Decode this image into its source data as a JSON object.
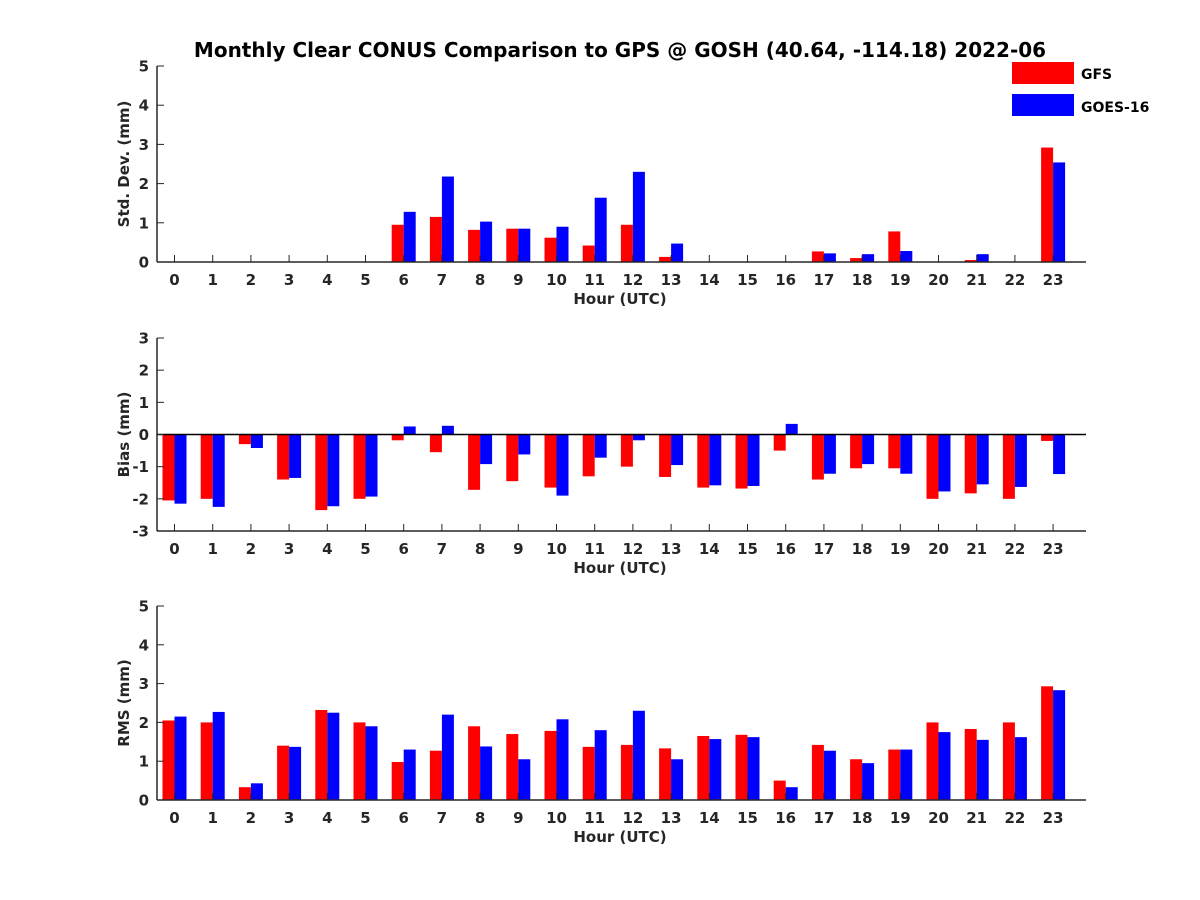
{
  "figure_title": "Monthly Clear CONUS Comparison to GPS @ GOSH (40.64, -114.18) 2022-06",
  "legend": {
    "location": "top-right",
    "entries": [
      {
        "label": "GFS",
        "color": "#ff0000"
      },
      {
        "label": "GOES-16",
        "color": "#0000ff"
      }
    ]
  },
  "chart_data": [
    {
      "type": "bar",
      "xlabel": "Hour (UTC)",
      "ylabel": "Std. Dev. (mm)",
      "ylim": [
        0,
        5
      ],
      "yticks": [
        0,
        1,
        2,
        3,
        4,
        5
      ],
      "categories": [
        "0",
        "1",
        "2",
        "3",
        "4",
        "5",
        "6",
        "7",
        "8",
        "9",
        "10",
        "11",
        "12",
        "13",
        "14",
        "15",
        "16",
        "17",
        "18",
        "19",
        "20",
        "21",
        "22",
        "23"
      ],
      "series": [
        {
          "name": "GFS",
          "color": "#ff0000",
          "values": [
            0,
            0,
            0,
            0,
            0,
            0,
            0.95,
            1.15,
            0.82,
            0.85,
            0.62,
            0.42,
            0.95,
            0.13,
            0,
            0,
            0,
            0.27,
            0.1,
            0.78,
            0,
            0.05,
            0,
            2.92
          ]
        },
        {
          "name": "GOES-16",
          "color": "#0000ff",
          "values": [
            0,
            0,
            0,
            0,
            0,
            0,
            1.28,
            2.18,
            1.03,
            0.85,
            0.9,
            1.64,
            2.3,
            0.47,
            0,
            0,
            0,
            0.22,
            0.2,
            0.28,
            0,
            0.2,
            0,
            2.54
          ]
        }
      ]
    },
    {
      "type": "bar",
      "xlabel": "Hour (UTC)",
      "ylabel": "Bias (mm)",
      "ylim": [
        -3,
        3
      ],
      "yticks": [
        -3,
        -2,
        -1,
        0,
        1,
        2,
        3
      ],
      "zero_line": true,
      "categories": [
        "0",
        "1",
        "2",
        "3",
        "4",
        "5",
        "6",
        "7",
        "8",
        "9",
        "10",
        "11",
        "12",
        "13",
        "14",
        "15",
        "16",
        "17",
        "18",
        "19",
        "20",
        "21",
        "22",
        "23"
      ],
      "series": [
        {
          "name": "GFS",
          "color": "#ff0000",
          "values": [
            -2.05,
            -2.0,
            -0.3,
            -1.4,
            -2.35,
            -2.0,
            -0.18,
            -0.55,
            -1.72,
            -1.45,
            -1.65,
            -1.3,
            -1.0,
            -1.32,
            -1.65,
            -1.68,
            -0.5,
            -1.4,
            -1.05,
            -1.05,
            -2.0,
            -1.83,
            -2.0,
            -0.2
          ]
        },
        {
          "name": "GOES-16",
          "color": "#0000ff",
          "values": [
            -2.15,
            -2.25,
            -0.42,
            -1.35,
            -2.23,
            -1.93,
            0.25,
            0.27,
            -0.92,
            -0.62,
            -1.9,
            -0.72,
            -0.18,
            -0.95,
            -1.58,
            -1.6,
            0.33,
            -1.22,
            -0.92,
            -1.22,
            -1.77,
            -1.55,
            -1.63,
            -1.23
          ]
        }
      ]
    },
    {
      "type": "bar",
      "xlabel": "Hour (UTC)",
      "ylabel": "RMS (mm)",
      "ylim": [
        0,
        5
      ],
      "yticks": [
        0,
        1,
        2,
        3,
        4,
        5
      ],
      "categories": [
        "0",
        "1",
        "2",
        "3",
        "4",
        "5",
        "6",
        "7",
        "8",
        "9",
        "10",
        "11",
        "12",
        "13",
        "14",
        "15",
        "16",
        "17",
        "18",
        "19",
        "20",
        "21",
        "22",
        "23"
      ],
      "series": [
        {
          "name": "GFS",
          "color": "#ff0000",
          "values": [
            2.05,
            2.0,
            0.33,
            1.4,
            2.32,
            2.0,
            0.98,
            1.27,
            1.9,
            1.7,
            1.78,
            1.37,
            1.42,
            1.33,
            1.65,
            1.68,
            0.5,
            1.42,
            1.05,
            1.3,
            2.0,
            1.83,
            2.0,
            2.93
          ]
        },
        {
          "name": "GOES-16",
          "color": "#0000ff",
          "values": [
            2.15,
            2.27,
            0.43,
            1.37,
            2.25,
            1.9,
            1.3,
            2.2,
            1.38,
            1.05,
            2.08,
            1.8,
            2.3,
            1.05,
            1.57,
            1.62,
            0.33,
            1.27,
            0.95,
            1.3,
            1.75,
            1.55,
            1.62,
            2.83
          ]
        }
      ]
    }
  ]
}
